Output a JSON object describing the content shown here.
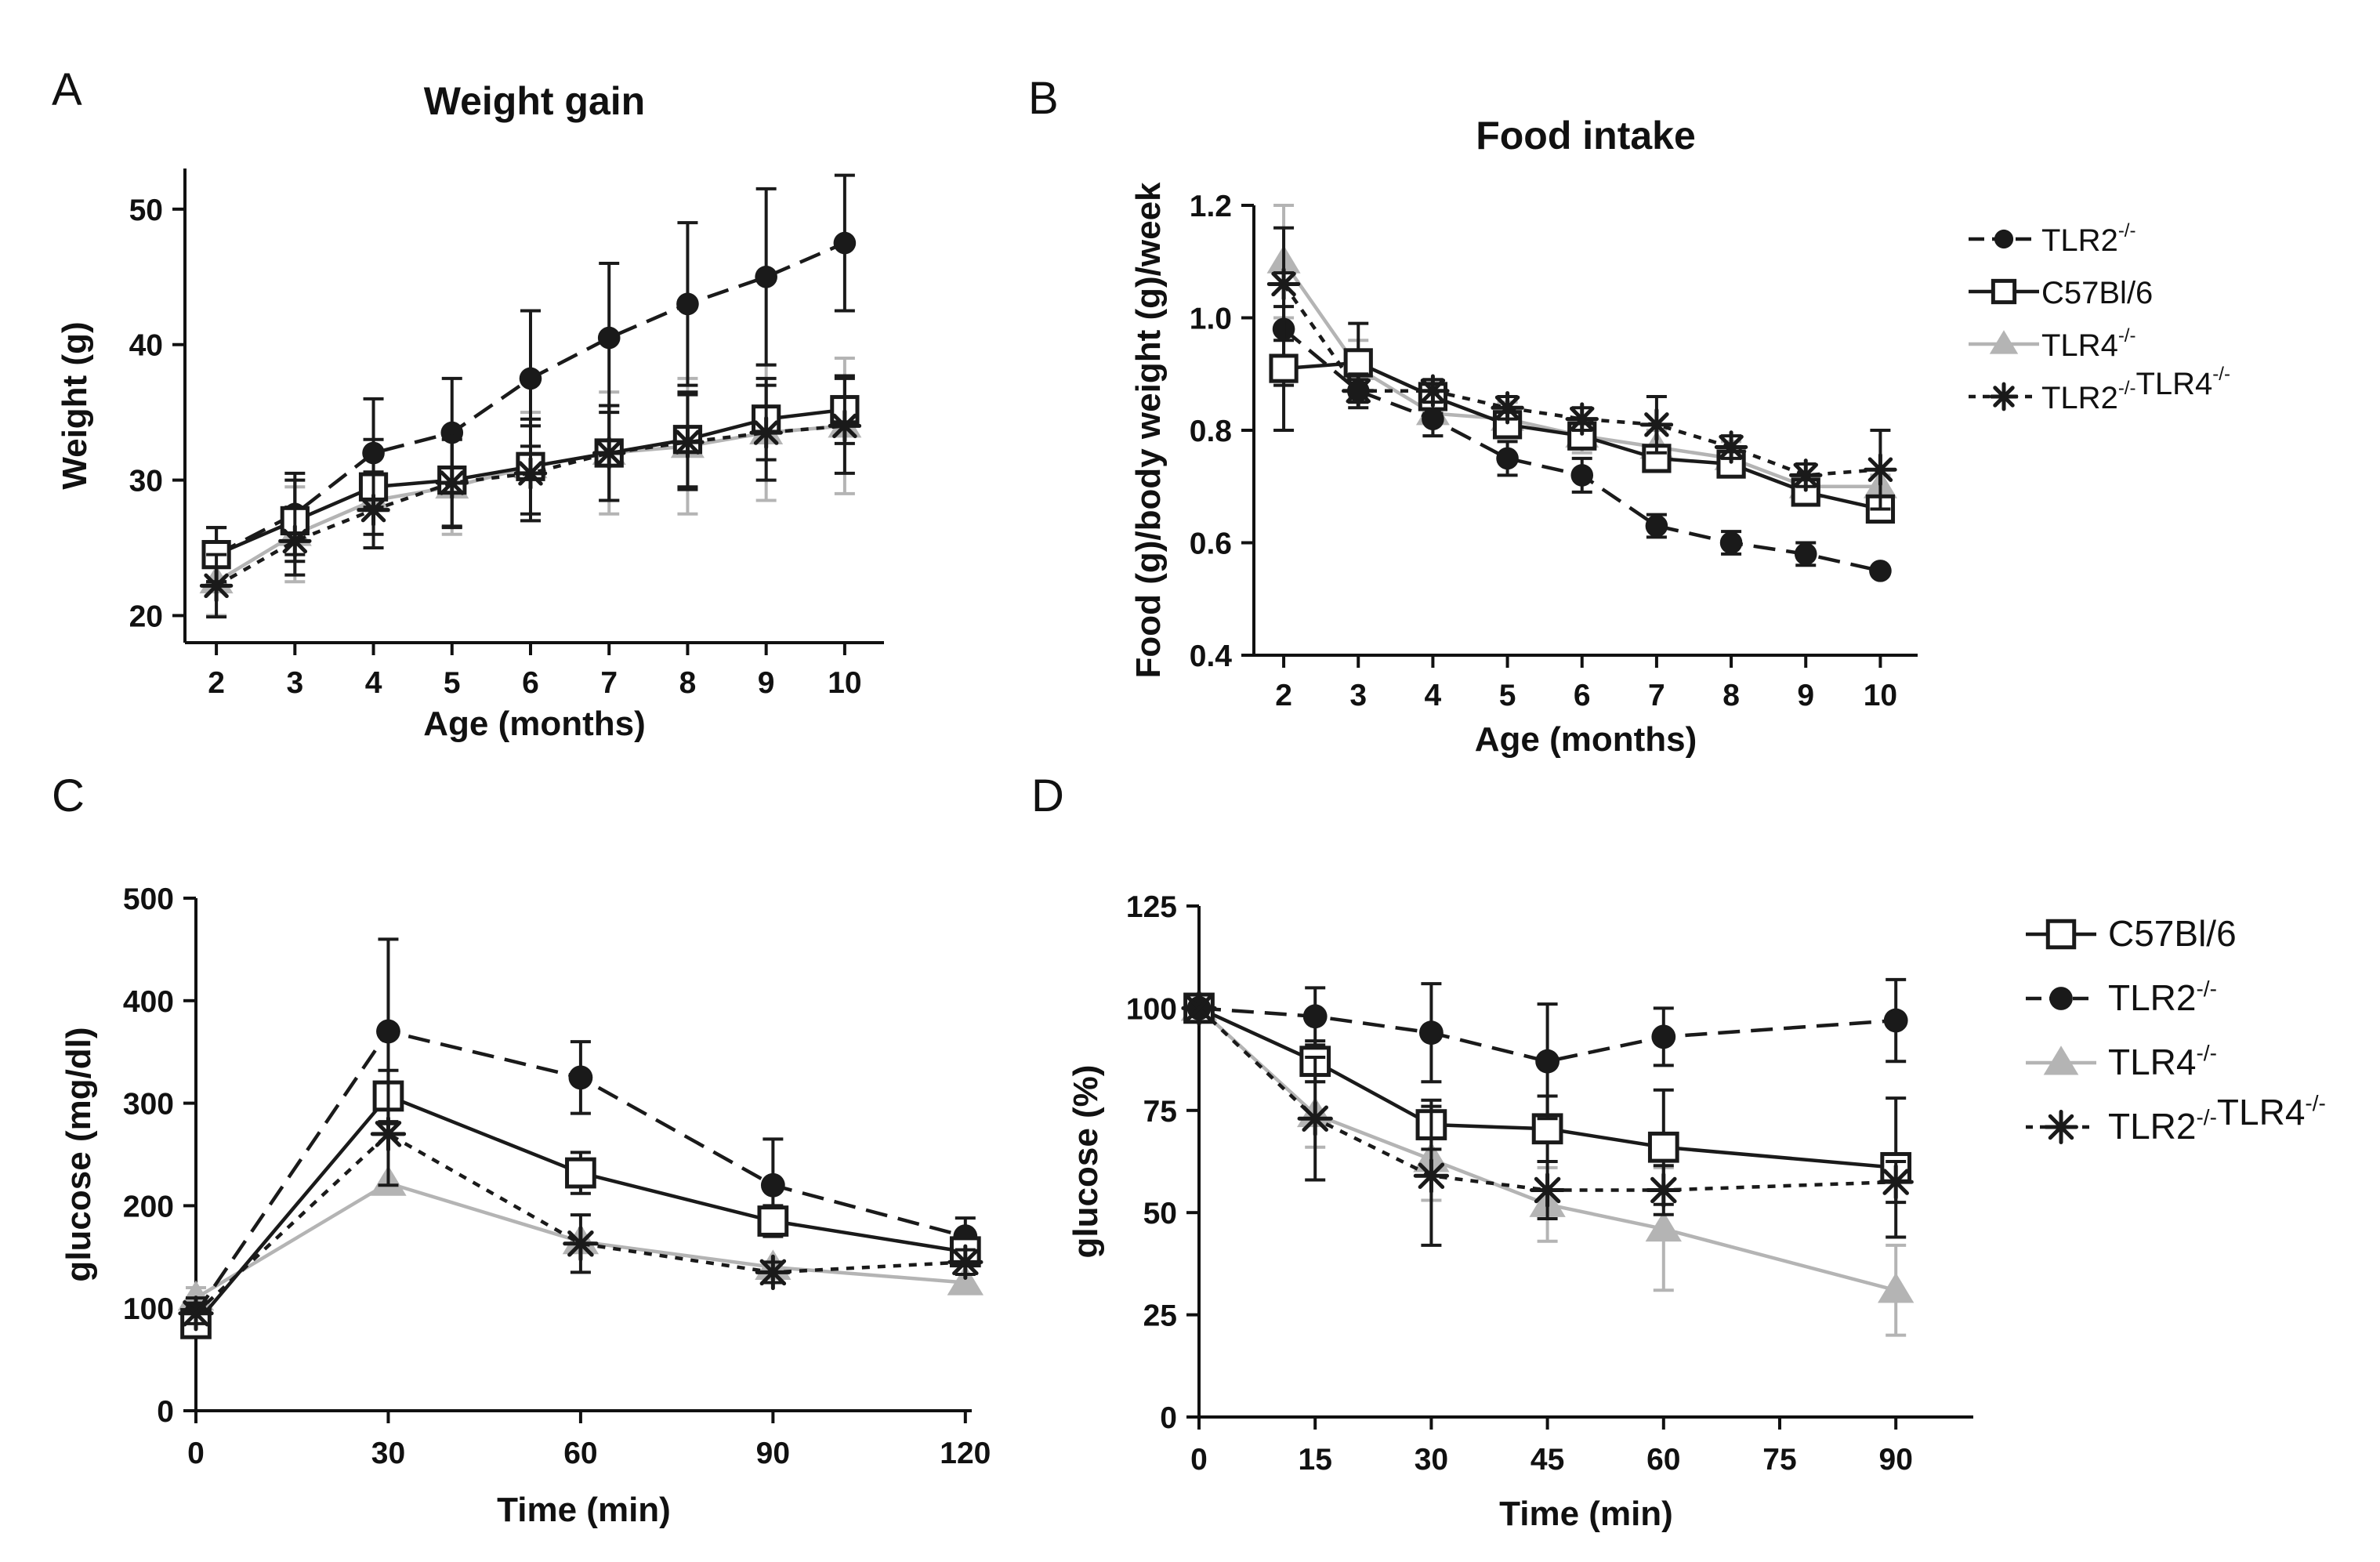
{
  "chart_data": [
    {
      "panel": "A",
      "type": "line",
      "title": "Weight gain",
      "xlabel": "Age (months)",
      "ylabel": "Weight (g)",
      "xlim": [
        1.6,
        10.5
      ],
      "ylim": [
        18,
        53
      ],
      "xticks": [
        2,
        3,
        4,
        5,
        6,
        7,
        8,
        9,
        10
      ],
      "yticks": [
        20,
        30,
        40,
        50
      ],
      "x": [
        2,
        3,
        4,
        5,
        6,
        7,
        8,
        9,
        10
      ],
      "series": [
        {
          "name": "TLR2",
          "style": "tlr2",
          "values": [
            24.5,
            27.5,
            32,
            33.5,
            37.5,
            40.5,
            43,
            45,
            47.5
          ],
          "errors": [
            2,
            3,
            4,
            4,
            5,
            5.5,
            6,
            6.5,
            5
          ]
        },
        {
          "name": "C57Bl/6",
          "style": "c57",
          "values": [
            24.5,
            27,
            29.5,
            30,
            31,
            32,
            33,
            34.5,
            35.2
          ],
          "errors": [
            2,
            3,
            3.5,
            3.5,
            3.5,
            3.5,
            3.5,
            3,
            2.5
          ]
        },
        {
          "name": "TLR4",
          "style": "tlr4",
          "values": [
            22.5,
            26,
            28.5,
            29.5,
            31,
            32,
            32.5,
            33.5,
            34
          ],
          "errors": [
            2.5,
            3.5,
            3.5,
            3.5,
            4,
            4.5,
            5,
            5,
            5
          ]
        },
        {
          "name": "TLR2TLR4",
          "style": "dko",
          "values": [
            22.2,
            25.5,
            27.8,
            29.8,
            30.5,
            32,
            32.8,
            33.5,
            34
          ],
          "errors": [
            2.3,
            2.5,
            2.8,
            3.2,
            3.5,
            3.5,
            3.5,
            3.5,
            3.5
          ]
        }
      ]
    },
    {
      "panel": "B",
      "type": "line",
      "title": "Food intake",
      "xlabel": "Age (months)",
      "ylabel": "Food (g)/body weight (g)/week",
      "xlim": [
        1.6,
        10.5
      ],
      "ylim": [
        0.4,
        1.2
      ],
      "xticks": [
        2,
        3,
        4,
        5,
        6,
        7,
        8,
        9,
        10
      ],
      "yticks": [
        0.4,
        0.6,
        0.8,
        1.0,
        1.2
      ],
      "x": [
        2,
        3,
        4,
        5,
        6,
        7,
        8,
        9,
        10
      ],
      "series": [
        {
          "name": "TLR2",
          "style": "tlr2",
          "values": [
            0.98,
            0.87,
            0.82,
            0.75,
            0.72,
            0.63,
            0.6,
            0.58,
            0.55
          ],
          "errors": [
            0.1,
            0.02,
            0.03,
            0.03,
            0.03,
            0.02,
            0.02,
            0.02,
            0
          ]
        },
        {
          "name": "C57Bl/6",
          "style": "c57",
          "values": [
            0.91,
            0.92,
            0.86,
            0.81,
            0.79,
            0.75,
            0.74,
            0.69,
            0.66
          ],
          "errors": [
            0.11,
            0.07,
            0.03,
            0.02,
            0.02,
            0.02,
            0.02,
            0.02,
            0.02
          ]
        },
        {
          "name": "TLR4",
          "style": "tlr4",
          "values": [
            1.1,
            0.91,
            0.83,
            0.82,
            0.79,
            0.77,
            0.75,
            0.7,
            0.7
          ],
          "errors": [
            0.1,
            0.05,
            0.04,
            0.03,
            0.03,
            0.03,
            0.03,
            0.02,
            0.02
          ]
        },
        {
          "name": "TLR2TLR4",
          "style": "dko",
          "values": [
            1.06,
            0.87,
            0.87,
            0.84,
            0.82,
            0.81,
            0.77,
            0.72,
            0.73
          ],
          "errors": [
            0.1,
            0.03,
            0.02,
            0.02,
            0.02,
            0.05,
            0.02,
            0.02,
            0.07
          ]
        }
      ]
    },
    {
      "panel": "C",
      "type": "line",
      "title": "",
      "xlabel": "Time (min)",
      "ylabel": "glucose (mg/dl)",
      "xlim": [
        0,
        121
      ],
      "ylim": [
        0,
        500
      ],
      "xticks": [
        0,
        30,
        60,
        90,
        120
      ],
      "yticks": [
        0,
        100,
        200,
        300,
        400,
        500
      ],
      "x": [
        0,
        30,
        60,
        90,
        120
      ],
      "series": [
        {
          "name": "TLR2",
          "style": "tlr2",
          "values": [
            95,
            370,
            325,
            220,
            170
          ],
          "errors": [
            15,
            90,
            35,
            45,
            18
          ]
        },
        {
          "name": "C57Bl/6",
          "style": "c57",
          "values": [
            85,
            307,
            232,
            185,
            155
          ],
          "errors": [
            10,
            25,
            20,
            15,
            12
          ]
        },
        {
          "name": "TLR4",
          "style": "tlr4",
          "values": [
            110,
            222,
            165,
            140,
            125
          ],
          "errors": [
            10,
            0,
            0,
            0,
            0
          ]
        },
        {
          "name": "TLR2TLR4",
          "style": "dko",
          "values": [
            95,
            270,
            163,
            135,
            145
          ],
          "errors": [
            10,
            50,
            28,
            10,
            12
          ]
        }
      ]
    },
    {
      "panel": "D",
      "type": "line",
      "title": "",
      "xlabel": "Time (min)",
      "ylabel": "glucose (%)",
      "xlim": [
        0,
        100
      ],
      "ylim": [
        0,
        125
      ],
      "xticks": [
        0,
        15,
        30,
        45,
        60,
        75,
        90
      ],
      "yticks": [
        0,
        25,
        50,
        75,
        100,
        125
      ],
      "x": [
        0,
        15,
        30,
        45,
        60,
        90
      ],
      "series": [
        {
          "name": "C57Bl/6",
          "style": "c57",
          "values": [
            100,
            87,
            71.5,
            70.5,
            66,
            61
          ],
          "errors": [
            0,
            5,
            6,
            8,
            14,
            17
          ]
        },
        {
          "name": "TLR2",
          "style": "tlr2",
          "values": [
            100,
            98,
            94,
            87,
            93,
            97
          ],
          "errors": [
            0,
            7,
            12,
            14,
            7,
            10
          ]
        },
        {
          "name": "TLR4",
          "style": "tlr4",
          "values": [
            100,
            74,
            63,
            52,
            46,
            31
          ],
          "errors": [
            0,
            8,
            10,
            9,
            15,
            11
          ]
        },
        {
          "name": "TLR2TLR4",
          "style": "dko",
          "values": [
            100,
            73,
            59,
            55.5,
            55.5,
            57.5
          ],
          "errors": [
            0,
            15,
            17,
            7,
            6,
            5
          ]
        }
      ]
    }
  ],
  "legend_top": {
    "entries": [
      {
        "style": "tlr2",
        "label": "TLR2",
        "sup": "-/-",
        "suffix": "",
        "sup2": ""
      },
      {
        "style": "c57",
        "label": "C57Bl/6",
        "sup": "",
        "suffix": "",
        "sup2": ""
      },
      {
        "style": "tlr4",
        "label": "TLR4",
        "sup": "-/-",
        "suffix": "",
        "sup2": ""
      },
      {
        "style": "dko",
        "label": "TLR2",
        "sup": "-/-",
        "suffix": "TLR4",
        "sup2": "-/-"
      }
    ]
  },
  "legend_bottom": {
    "entries": [
      {
        "style": "c57",
        "label": "C57Bl/6",
        "sup": "",
        "suffix": "",
        "sup2": ""
      },
      {
        "style": "tlr2",
        "label": "TLR2",
        "sup": "-/-",
        "suffix": "",
        "sup2": ""
      },
      {
        "style": "tlr4",
        "label": "TLR4",
        "sup": "-/-",
        "suffix": "",
        "sup2": ""
      },
      {
        "style": "dko",
        "label": "TLR2",
        "sup": "-/-",
        "suffix": "TLR4",
        "sup2": "-/-"
      }
    ]
  },
  "colors": {
    "dark": "#1a1a1a",
    "gray": "#b4b4b4"
  }
}
